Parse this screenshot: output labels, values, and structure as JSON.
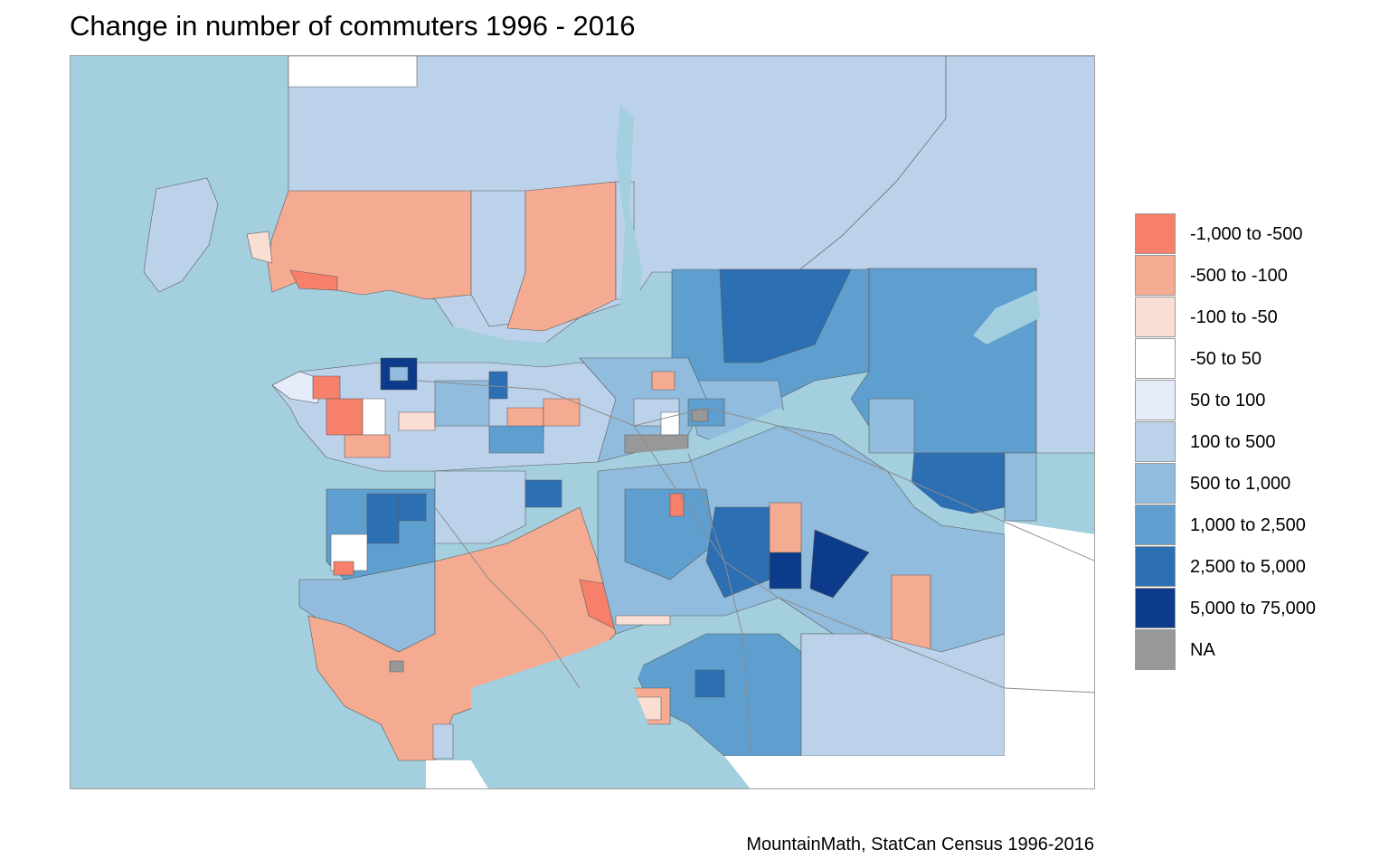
{
  "title": "Change in number of commuters 1996 - 2016",
  "caption": "MountainMath, StatCan Census 1996-2016",
  "colors": {
    "water": "#a3cfde",
    "background": "#ffffff",
    "boundary": "#5a5a5a",
    "road": "#8c8c8c"
  },
  "legend": {
    "items": [
      {
        "label": "-1,000 to -500",
        "color": "#f7806b",
        "icon": "legend-swatch"
      },
      {
        "label": "-500 to -100",
        "color": "#f5ab92",
        "icon": "legend-swatch"
      },
      {
        "label": "-100 to -50",
        "color": "#fbded3",
        "icon": "legend-swatch"
      },
      {
        "label": "-50 to 50",
        "color": "#ffffff",
        "icon": "legend-swatch"
      },
      {
        "label": "50 to 100",
        "color": "#e4edf9",
        "icon": "legend-swatch"
      },
      {
        "label": "100 to 500",
        "color": "#bcd2eb",
        "icon": "legend-swatch"
      },
      {
        "label": "500 to 1,000",
        "color": "#91bcdd",
        "icon": "legend-swatch"
      },
      {
        "label": "1,000 to 2,500",
        "color": "#5e9fcf",
        "icon": "legend-swatch"
      },
      {
        "label": "2,500 to 5,000",
        "color": "#2c6fb3",
        "icon": "legend-swatch"
      },
      {
        "label": "5,000 to 75,000",
        "color": "#0b3b8a",
        "icon": "legend-swatch"
      },
      {
        "label": "NA",
        "color": "#989898",
        "icon": "legend-swatch"
      }
    ]
  }
}
